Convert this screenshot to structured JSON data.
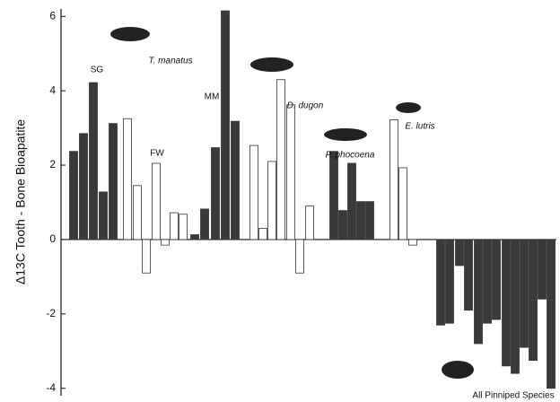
{
  "chart_data": {
    "type": "bar",
    "y_label": "Δ13C Tooth - Bone Bioapatite",
    "values": [
      2.37,
      2.85,
      4.22,
      1.28,
      3.12,
      3.25,
      1.45,
      -0.9,
      2.05,
      -0.15,
      0.72,
      0.68,
      0.13,
      0.82,
      2.47,
      6.15,
      3.18,
      2.53,
      0.3,
      2.1,
      4.3,
      3.62,
      -0.9,
      0.9,
      2.37,
      0.78,
      2.05,
      1.02,
      1.02,
      3.22,
      1.93,
      -0.15,
      -2.3,
      -2.25,
      -0.7,
      -1.9,
      -2.8,
      -2.25,
      -2.15,
      -3.4,
      -3.6,
      -2.9,
      -3.25,
      -1.6,
      -4.0
    ],
    "colors": [
      "#3a3a3a",
      "#3a3a3a",
      "#3a3a3a",
      "#3a3a3a",
      "#3a3a3a",
      "#ffffff",
      "#ffffff",
      "#ffffff",
      "#ffffff",
      "#ffffff",
      "#ffffff",
      "#ffffff",
      "#3a3a3a",
      "#3a3a3a",
      "#3a3a3a",
      "#3a3a3a",
      "#3a3a3a",
      "#ffffff",
      "#ffffff",
      "#ffffff",
      "#ffffff",
      "#ffffff",
      "#ffffff",
      "#ffffff",
      "#3a3a3a",
      "#3a3a3a",
      "#3a3a3a",
      "#3a3a3a",
      "#3a3a3a",
      "#ffffff",
      "#ffffff",
      "#ffffff",
      "#3a3a3a",
      "#3a3a3a",
      "#3a3a3a",
      "#3a3a3a",
      "#3a3a3a",
      "#3a3a3a",
      "#3a3a3a",
      "#3a3a3a",
      "#3a3a3a",
      "#3a3a3a",
      "#3a3a3a",
      "#3a3a3a",
      "#3a3a3a"
    ],
    "annotations": [
      "SG",
      "T. manatus",
      "FW",
      "MM",
      "D. dugon",
      "P. phocoena",
      "E. lutris",
      "All Pinniped Species"
    ],
    "ylim": [
      -4.2,
      6.2
    ],
    "yticks": [
      6,
      4,
      2,
      0,
      -2,
      -4
    ]
  }
}
